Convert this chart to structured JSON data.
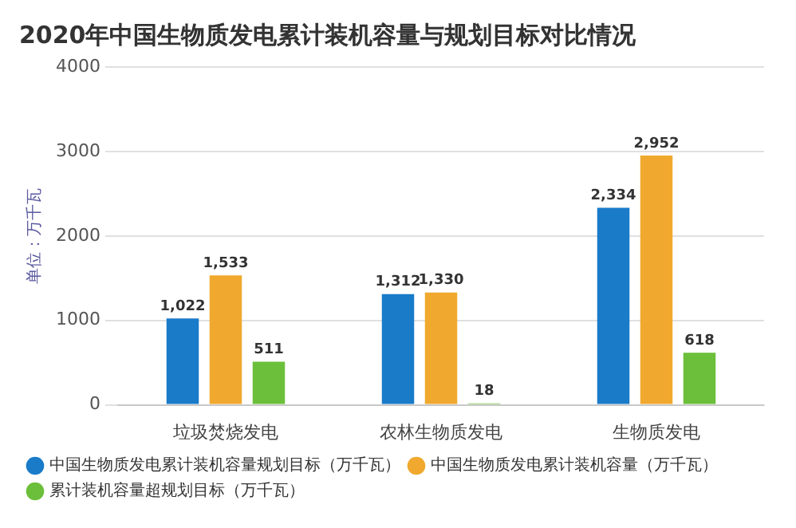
{
  "chart_data": {
    "type": "bar",
    "title": "2020年中国生物质发电累计装机容量与规划目标对比情况",
    "ylabel": "单位：万千瓦",
    "categories": [
      "垃圾焚烧发电",
      "农林生物质发电",
      "生物质发电"
    ],
    "series": [
      {
        "name": "中国生物质发电累计装机容量规划目标（万千瓦）",
        "color": "#1a7bc9",
        "values": [
          1022,
          1312,
          2334
        ],
        "value_labels": [
          "1,022",
          "1,312",
          "2,334"
        ]
      },
      {
        "name": "中国生物质发电累计装机容量（万千瓦）",
        "color": "#f0a92e",
        "values": [
          1533,
          1330,
          2952
        ],
        "value_labels": [
          "1,533",
          "1,330",
          "2,952"
        ]
      },
      {
        "name": "累计装机容量超规划目标（万千瓦）",
        "color": "#6cbf3a",
        "values": [
          511,
          18,
          618
        ],
        "value_labels": [
          "511",
          "18",
          "618"
        ]
      }
    ],
    "ylim": [
      0,
      4000
    ],
    "yticks": [
      0,
      1000,
      2000,
      3000,
      4000
    ],
    "grid": "y",
    "legend": "bottom"
  }
}
